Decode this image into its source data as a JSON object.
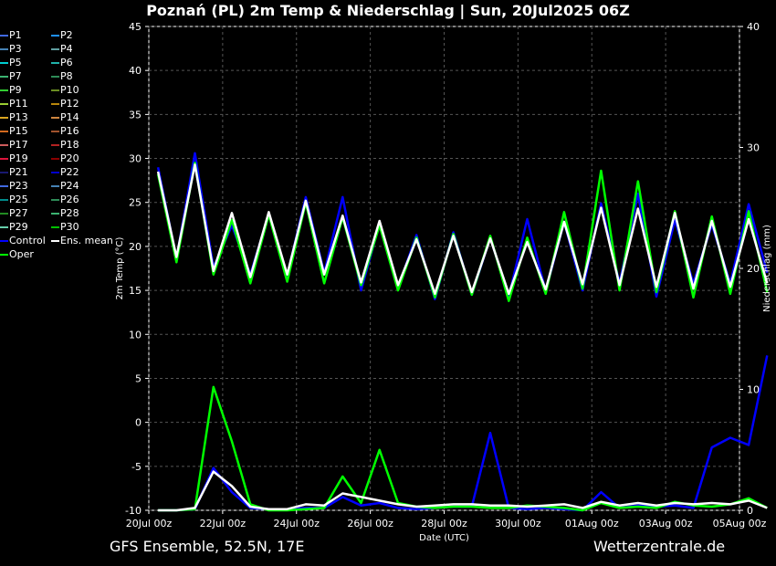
{
  "title": "Poznań  (PL)  2m Temp & Niederschlag | Sun, 20Jul2025 06Z",
  "footer": {
    "left": "GFS Ensemble, 52.5N, 17E",
    "right": "Wetterzentrale.de"
  },
  "colors": {
    "background": "#000000",
    "control": "#0000ff",
    "ens_mean": "#ffffff",
    "oper": "#00ff00",
    "grid": "#555555"
  },
  "legend": [
    {
      "label": "P1",
      "color": "#4169e1"
    },
    {
      "label": "P2",
      "color": "#1e90ff"
    },
    {
      "label": "P3",
      "color": "#4682b4"
    },
    {
      "label": "P4",
      "color": "#5f9ea0"
    },
    {
      "label": "P5",
      "color": "#00ced1"
    },
    {
      "label": "P6",
      "color": "#20b2aa"
    },
    {
      "label": "P7",
      "color": "#3cb371"
    },
    {
      "label": "P8",
      "color": "#2e8b57"
    },
    {
      "label": "P9",
      "color": "#32cd32"
    },
    {
      "label": "P10",
      "color": "#6b8e23"
    },
    {
      "label": "P11",
      "color": "#9acd32"
    },
    {
      "label": "P12",
      "color": "#b8860b"
    },
    {
      "label": "P13",
      "color": "#daa520"
    },
    {
      "label": "P14",
      "color": "#cd853f"
    },
    {
      "label": "P15",
      "color": "#d2691e"
    },
    {
      "label": "P16",
      "color": "#a0522d"
    },
    {
      "label": "P17",
      "color": "#cd5c5c"
    },
    {
      "label": "P18",
      "color": "#b22222"
    },
    {
      "label": "P19",
      "color": "#dc143c"
    },
    {
      "label": "P20",
      "color": "#8b0000"
    },
    {
      "label": "P21",
      "color": "#191970"
    },
    {
      "label": "P22",
      "color": "#0000cd"
    },
    {
      "label": "P23",
      "color": "#4169e1"
    },
    {
      "label": "P24",
      "color": "#4682b4"
    },
    {
      "label": "P25",
      "color": "#008b8b"
    },
    {
      "label": "P26",
      "color": "#2e8b57"
    },
    {
      "label": "P27",
      "color": "#228b22"
    },
    {
      "label": "P28",
      "color": "#3cb371"
    },
    {
      "label": "P29",
      "color": "#66cdaa"
    },
    {
      "label": "P30",
      "color": "#00c000"
    },
    {
      "label": "Control",
      "color": "#0000ff"
    },
    {
      "label": "Ens. mean",
      "color": "#ffffff"
    },
    {
      "label": "Oper",
      "color": "#00ff00"
    }
  ],
  "chart_data": {
    "type": "line",
    "xlabel": "Date (UTC)",
    "ylabel": "2m Temp (°C)",
    "y2label": "Niederschlag (mm)",
    "ylim": [
      -10,
      45
    ],
    "y2lim": [
      0,
      40
    ],
    "yticks": [
      45,
      40,
      35,
      30,
      25,
      20,
      15,
      10,
      5,
      0,
      -5,
      -10
    ],
    "y2ticks": [
      40,
      30,
      20,
      10,
      0
    ],
    "xticks": [
      "20Jul 00z",
      "22Jul 00z",
      "24Jul 00z",
      "26Jul 00z",
      "28Jul 00z",
      "30Jul 00z",
      "01Aug 00z",
      "03Aug 00z",
      "05Aug 00z"
    ],
    "grid": true,
    "x_hours_from_first_tick": [
      6,
      18,
      30,
      42,
      54,
      66,
      78,
      90,
      102,
      114,
      126,
      138,
      150,
      162,
      174,
      186,
      198,
      210,
      222,
      234,
      246,
      258,
      270,
      282,
      294,
      306,
      318,
      330,
      342,
      354,
      366,
      378,
      390,
      402
    ],
    "series": [
      {
        "name": "Ens. mean",
        "axis": "temp",
        "values": [
          28.5,
          18.8,
          29.3,
          17.2,
          23.8,
          16.5,
          23.9,
          16.8,
          25.2,
          16.8,
          23.5,
          15.9,
          22.9,
          15.6,
          20.8,
          14.6,
          21.2,
          14.8,
          20.9,
          14.6,
          20.5,
          15.1,
          22.8,
          15.7,
          24.4,
          15.6,
          24.3,
          15.4,
          23.8,
          15.2,
          22.9,
          15.4,
          23.1,
          15.8
        ]
      },
      {
        "name": "Control",
        "axis": "temp",
        "values": [
          29.0,
          18.6,
          30.6,
          17.6,
          22.4,
          16.8,
          23.6,
          16.7,
          25.6,
          17.0,
          25.6,
          15.0,
          22.6,
          15.3,
          21.3,
          14.0,
          21.6,
          14.5,
          21.0,
          14.3,
          23.1,
          14.9,
          22.8,
          15.0,
          24.9,
          15.8,
          26.0,
          14.3,
          23.0,
          15.8,
          22.5,
          15.8,
          24.8,
          17.0
        ]
      },
      {
        "name": "Oper",
        "axis": "temp",
        "values": [
          28.2,
          18.2,
          29.5,
          16.8,
          23.0,
          15.8,
          23.6,
          16.0,
          25.0,
          15.8,
          23.3,
          15.6,
          22.4,
          15.0,
          21.0,
          14.2,
          21.4,
          14.5,
          21.2,
          13.8,
          21.0,
          14.6,
          23.9,
          15.2,
          28.6,
          15.0,
          27.4,
          14.8,
          24.0,
          14.2,
          23.4,
          14.6,
          24.0,
          14.8
        ]
      },
      {
        "name": "Ens. mean",
        "axis": "precip",
        "values": [
          0.0,
          0.0,
          0.2,
          3.2,
          2.0,
          0.3,
          0.1,
          0.1,
          0.5,
          0.4,
          1.4,
          1.1,
          0.8,
          0.5,
          0.3,
          0.4,
          0.5,
          0.5,
          0.4,
          0.4,
          0.3,
          0.4,
          0.5,
          0.2,
          0.7,
          0.4,
          0.6,
          0.4,
          0.6,
          0.5,
          0.6,
          0.5,
          0.8,
          0.2
        ]
      },
      {
        "name": "Control",
        "axis": "precip",
        "values": [
          0.0,
          0.0,
          0.1,
          3.5,
          1.5,
          0.2,
          0.1,
          0.1,
          0.2,
          0.2,
          1.1,
          0.4,
          0.6,
          0.2,
          0.1,
          0.2,
          0.3,
          0.3,
          6.4,
          0.2,
          0.1,
          0.2,
          0.1,
          0.0,
          1.5,
          0.2,
          0.4,
          0.3,
          0.4,
          0.2,
          5.2,
          6.0,
          5.4,
          12.8
        ]
      },
      {
        "name": "Oper",
        "axis": "precip",
        "values": [
          0.0,
          0.0,
          0.1,
          10.2,
          5.7,
          0.5,
          0.0,
          0.0,
          0.1,
          0.2,
          2.8,
          0.6,
          5.0,
          0.6,
          0.3,
          0.2,
          0.3,
          0.3,
          0.2,
          0.2,
          0.4,
          0.3,
          0.2,
          0.0,
          0.6,
          0.2,
          0.3,
          0.2,
          0.7,
          0.4,
          0.3,
          0.5,
          1.0,
          0.2
        ]
      }
    ]
  }
}
